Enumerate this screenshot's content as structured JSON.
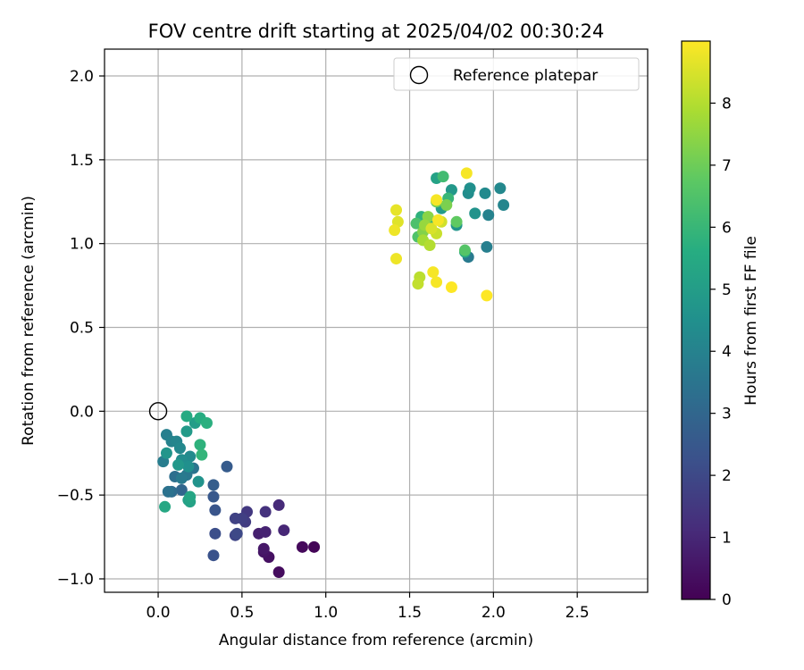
{
  "chart_data": {
    "type": "scatter",
    "title": "FOV centre drift starting at 2025/04/02 00:30:24",
    "xlabel": "Angular distance from reference (arcmin)",
    "ylabel": "Rotation from reference (arcmin)",
    "xlim": [
      -0.32,
      2.92
    ],
    "ylim": [
      -1.08,
      2.16
    ],
    "xticks": [
      "0.0",
      "0.5",
      "1.0",
      "1.5",
      "2.0",
      "2.5"
    ],
    "xtick_values": [
      0,
      0.5,
      1,
      1.5,
      2,
      2.5
    ],
    "yticks": [
      "−1.0",
      "−0.5",
      "0.0",
      "0.5",
      "1.0",
      "1.5",
      "2.0"
    ],
    "ytick_values": [
      -1,
      -0.5,
      0,
      0.5,
      1,
      1.5,
      2
    ],
    "grid": true,
    "legend": {
      "position": "top-right",
      "entries": [
        "Reference platepar"
      ]
    },
    "reference_point": {
      "x": 0,
      "y": 0
    },
    "colorbar": {
      "label": "Hours from first FF file",
      "ticks": [
        "0",
        "1",
        "2",
        "3",
        "4",
        "5",
        "6",
        "7",
        "8"
      ],
      "range": [
        0,
        9
      ],
      "colormap": "viridis"
    },
    "points": [
      {
        "x": 0.93,
        "y": -0.81,
        "h": 0.1
      },
      {
        "x": 0.86,
        "y": -0.81,
        "h": 0.2
      },
      {
        "x": 0.72,
        "y": -0.96,
        "h": 0.3
      },
      {
        "x": 0.66,
        "y": -0.87,
        "h": 0.4
      },
      {
        "x": 0.63,
        "y": -0.84,
        "h": 0.5
      },
      {
        "x": 0.63,
        "y": -0.82,
        "h": 0.6
      },
      {
        "x": 0.6,
        "y": -0.73,
        "h": 0.8
      },
      {
        "x": 0.64,
        "y": -0.72,
        "h": 0.9
      },
      {
        "x": 0.75,
        "y": -0.71,
        "h": 1.0
      },
      {
        "x": 0.72,
        "y": -0.56,
        "h": 1.1
      },
      {
        "x": 0.64,
        "y": -0.6,
        "h": 1.3
      },
      {
        "x": 0.53,
        "y": -0.6,
        "h": 1.5
      },
      {
        "x": 0.52,
        "y": -0.66,
        "h": 1.6
      },
      {
        "x": 0.5,
        "y": -0.64,
        "h": 1.7
      },
      {
        "x": 0.46,
        "y": -0.64,
        "h": 1.8
      },
      {
        "x": 0.46,
        "y": -0.74,
        "h": 1.9
      },
      {
        "x": 0.47,
        "y": -0.73,
        "h": 2.0
      },
      {
        "x": 0.34,
        "y": -0.73,
        "h": 2.2
      },
      {
        "x": 0.33,
        "y": -0.86,
        "h": 2.3
      },
      {
        "x": 0.34,
        "y": -0.59,
        "h": 2.4
      },
      {
        "x": 0.33,
        "y": -0.51,
        "h": 2.5
      },
      {
        "x": 0.41,
        "y": -0.33,
        "h": 2.6
      },
      {
        "x": 0.33,
        "y": -0.44,
        "h": 2.7
      },
      {
        "x": 0.14,
        "y": -0.47,
        "h": 3.0
      },
      {
        "x": 0.08,
        "y": -0.48,
        "h": 3.2
      },
      {
        "x": 0.1,
        "y": -0.39,
        "h": 3.3
      },
      {
        "x": 0.06,
        "y": -0.48,
        "h": 3.4
      },
      {
        "x": 0.21,
        "y": -0.34,
        "h": 3.5
      },
      {
        "x": 0.17,
        "y": -0.38,
        "h": 3.6
      },
      {
        "x": 0.14,
        "y": -0.4,
        "h": 3.7
      },
      {
        "x": 0.03,
        "y": -0.3,
        "h": 3.8
      },
      {
        "x": 0.05,
        "y": -0.14,
        "h": 3.9
      },
      {
        "x": 0.08,
        "y": -0.18,
        "h": 4.0
      },
      {
        "x": 0.11,
        "y": -0.18,
        "h": 4.1
      },
      {
        "x": 0.13,
        "y": -0.22,
        "h": 4.2
      },
      {
        "x": 0.19,
        "y": -0.27,
        "h": 4.3
      },
      {
        "x": 0.14,
        "y": -0.29,
        "h": 4.4
      },
      {
        "x": 0.18,
        "y": -0.33,
        "h": 4.5
      },
      {
        "x": 0.24,
        "y": -0.42,
        "h": 4.6
      },
      {
        "x": 0.05,
        "y": -0.25,
        "h": 4.7
      },
      {
        "x": 0.12,
        "y": -0.32,
        "h": 4.8
      },
      {
        "x": 0.17,
        "y": -0.12,
        "h": 4.9
      },
      {
        "x": 0.22,
        "y": -0.07,
        "h": 5.0
      },
      {
        "x": 0.18,
        "y": -0.53,
        "h": 5.1
      },
      {
        "x": 0.19,
        "y": -0.54,
        "h": 5.2
      },
      {
        "x": 0.19,
        "y": -0.51,
        "h": 5.3
      },
      {
        "x": 0.04,
        "y": -0.57,
        "h": 5.4
      },
      {
        "x": 0.17,
        "y": -0.03,
        "h": 5.5
      },
      {
        "x": 0.25,
        "y": -0.04,
        "h": 5.6
      },
      {
        "x": 0.29,
        "y": -0.07,
        "h": 5.7
      },
      {
        "x": 0.25,
        "y": -0.2,
        "h": 5.8
      },
      {
        "x": 0.26,
        "y": -0.26,
        "h": 5.9
      },
      {
        "x": 1.85,
        "y": 0.92,
        "h": 3.7
      },
      {
        "x": 1.96,
        "y": 0.98,
        "h": 3.9
      },
      {
        "x": 1.97,
        "y": 1.17,
        "h": 4.0
      },
      {
        "x": 2.06,
        "y": 1.23,
        "h": 4.1
      },
      {
        "x": 2.04,
        "y": 1.33,
        "h": 4.2
      },
      {
        "x": 1.95,
        "y": 1.3,
        "h": 4.3
      },
      {
        "x": 1.85,
        "y": 1.3,
        "h": 4.4
      },
      {
        "x": 1.86,
        "y": 1.33,
        "h": 4.5
      },
      {
        "x": 1.89,
        "y": 1.18,
        "h": 4.6
      },
      {
        "x": 1.78,
        "y": 1.11,
        "h": 4.7
      },
      {
        "x": 1.75,
        "y": 1.32,
        "h": 4.8
      },
      {
        "x": 1.69,
        "y": 1.21,
        "h": 5.0
      },
      {
        "x": 1.66,
        "y": 1.39,
        "h": 5.2
      },
      {
        "x": 1.83,
        "y": 0.95,
        "h": 5.4
      },
      {
        "x": 1.62,
        "y": 1.12,
        "h": 5.6
      },
      {
        "x": 1.57,
        "y": 1.16,
        "h": 5.8
      },
      {
        "x": 1.73,
        "y": 1.27,
        "h": 6.0
      },
      {
        "x": 1.7,
        "y": 1.4,
        "h": 6.2
      },
      {
        "x": 1.54,
        "y": 1.12,
        "h": 6.4
      },
      {
        "x": 1.55,
        "y": 1.04,
        "h": 6.5
      },
      {
        "x": 1.83,
        "y": 0.96,
        "h": 6.6
      },
      {
        "x": 1.78,
        "y": 1.13,
        "h": 6.8
      },
      {
        "x": 1.66,
        "y": 1.25,
        "h": 7.0
      },
      {
        "x": 1.72,
        "y": 1.23,
        "h": 7.2
      },
      {
        "x": 1.58,
        "y": 1.07,
        "h": 7.3
      },
      {
        "x": 1.61,
        "y": 1.16,
        "h": 7.4
      },
      {
        "x": 1.59,
        "y": 1.11,
        "h": 7.6
      },
      {
        "x": 1.58,
        "y": 1.02,
        "h": 7.8
      },
      {
        "x": 1.62,
        "y": 0.99,
        "h": 8.0
      },
      {
        "x": 1.56,
        "y": 0.8,
        "h": 8.1
      },
      {
        "x": 1.55,
        "y": 0.76,
        "h": 8.2
      },
      {
        "x": 1.66,
        "y": 1.06,
        "h": 8.3
      },
      {
        "x": 1.69,
        "y": 1.13,
        "h": 8.4
      },
      {
        "x": 1.63,
        "y": 1.09,
        "h": 8.5
      },
      {
        "x": 1.43,
        "y": 1.13,
        "h": 8.6
      },
      {
        "x": 1.42,
        "y": 1.2,
        "h": 8.7
      },
      {
        "x": 1.41,
        "y": 1.08,
        "h": 8.8
      },
      {
        "x": 1.42,
        "y": 0.91,
        "h": 8.8
      },
      {
        "x": 1.64,
        "y": 0.83,
        "h": 8.9
      },
      {
        "x": 1.66,
        "y": 0.77,
        "h": 8.9
      },
      {
        "x": 1.75,
        "y": 0.74,
        "h": 9.0
      },
      {
        "x": 1.96,
        "y": 0.69,
        "h": 9.0
      },
      {
        "x": 1.84,
        "y": 1.42,
        "h": 8.9
      },
      {
        "x": 1.66,
        "y": 1.26,
        "h": 8.9
      },
      {
        "x": 1.67,
        "y": 1.14,
        "h": 8.9
      }
    ]
  }
}
